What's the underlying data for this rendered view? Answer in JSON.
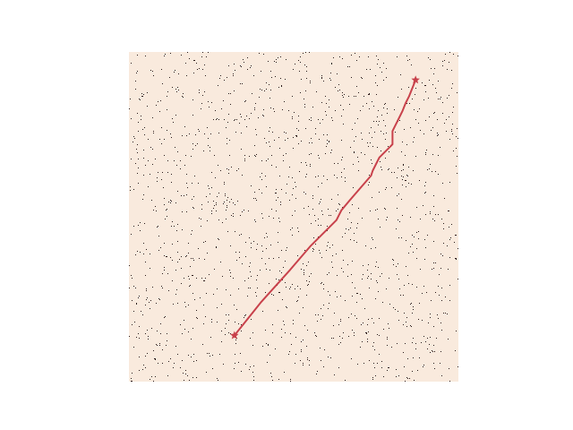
{
  "figure": {
    "background_color": "#ffffff",
    "field_color": "#f9eadd",
    "obstacle_color": "#2b1a1a",
    "path_color": "#c8414b"
  },
  "map": {
    "obstacle_density": 0.012,
    "random_seed": 7
  },
  "path": {
    "start_marker_icon": "star-icon",
    "goal_marker_icon": "star-icon",
    "points": [
      [
        0.32,
        0.86
      ],
      [
        0.4,
        0.76
      ],
      [
        0.49,
        0.66
      ],
      [
        0.55,
        0.59
      ],
      [
        0.63,
        0.51
      ],
      [
        0.64,
        0.49
      ],
      [
        0.645,
        0.48
      ],
      [
        0.67,
        0.45
      ],
      [
        0.735,
        0.375
      ],
      [
        0.74,
        0.36
      ],
      [
        0.76,
        0.32
      ],
      [
        0.795,
        0.285
      ],
      [
        0.8,
        0.28
      ],
      [
        0.8,
        0.24
      ],
      [
        0.815,
        0.21
      ],
      [
        0.83,
        0.18
      ],
      [
        0.84,
        0.155
      ],
      [
        0.85,
        0.135
      ],
      [
        0.87,
        0.085
      ]
    ]
  }
}
